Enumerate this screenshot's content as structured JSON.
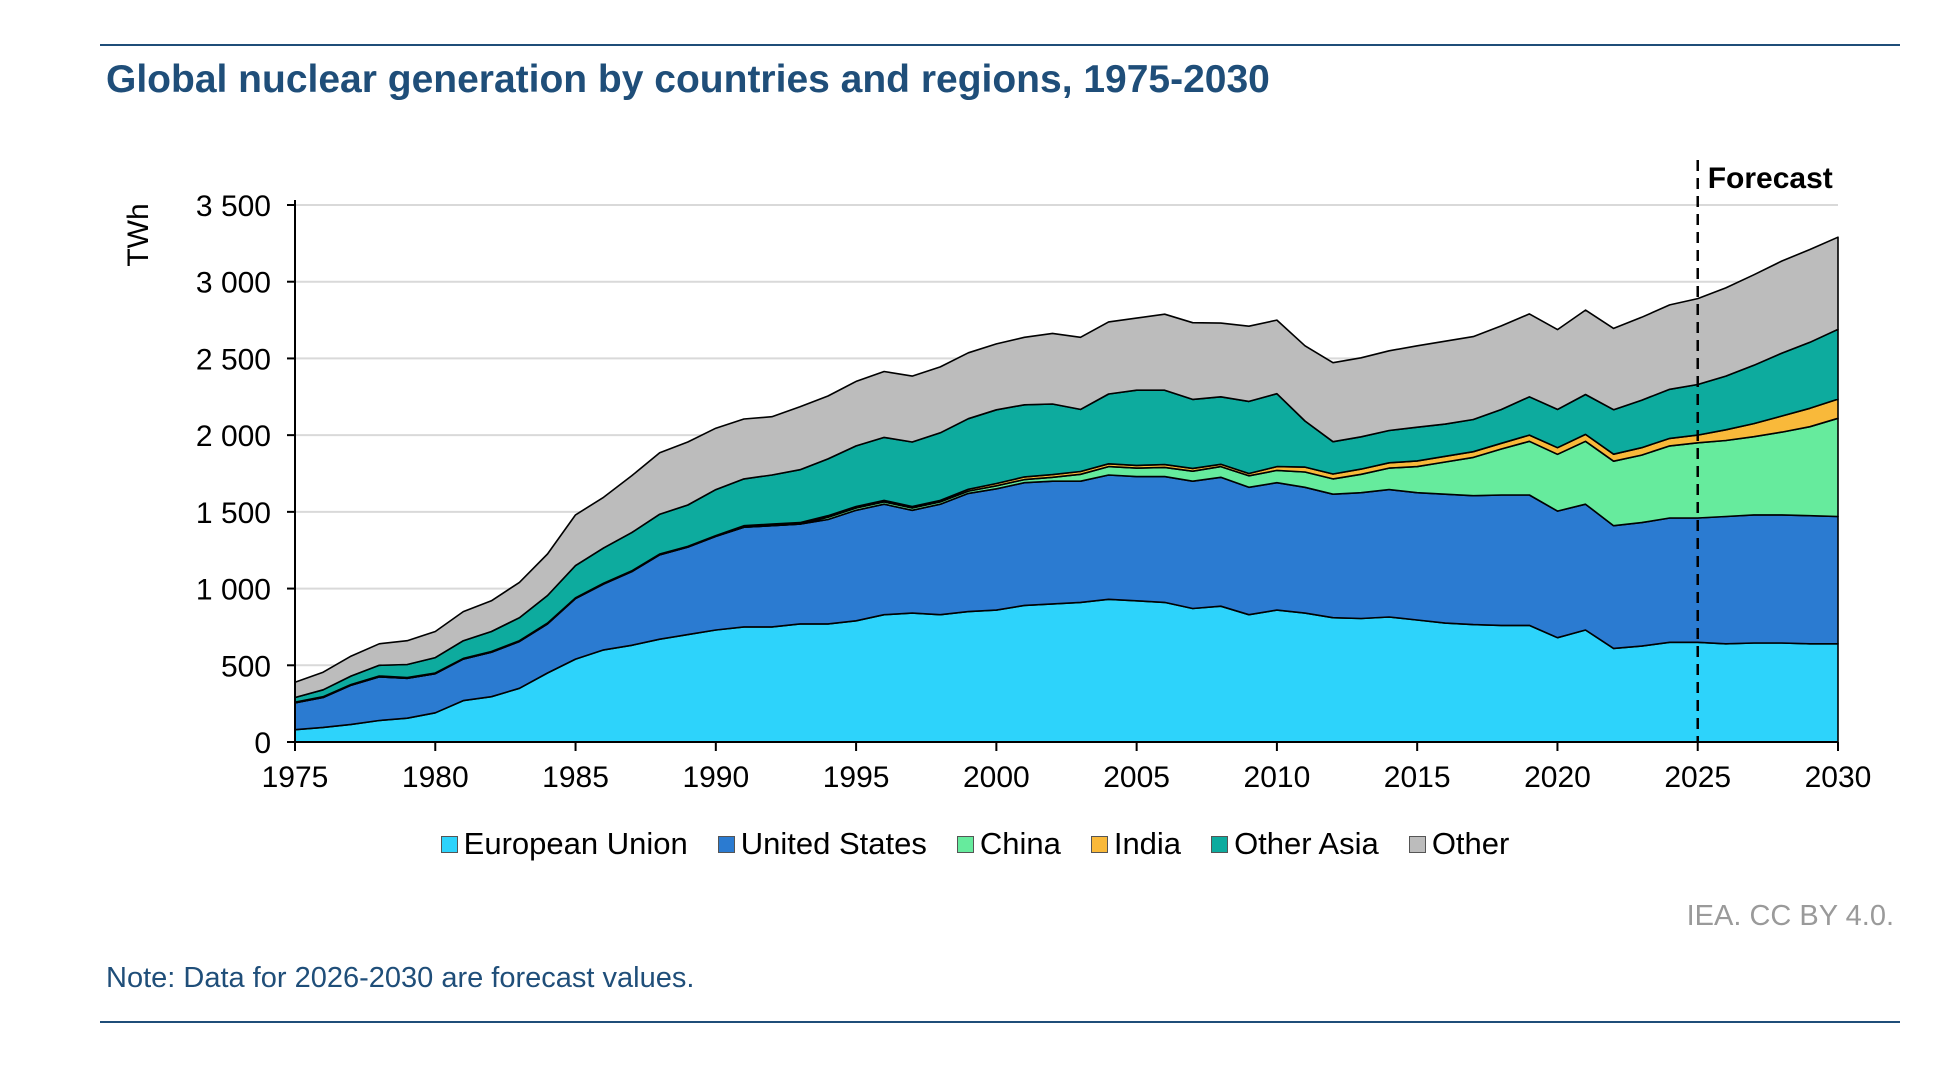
{
  "title": "Global nuclear generation by countries and regions, 1975-2030",
  "credit": "IEA. CC BY 4.0.",
  "note": "Note: Data for 2026-2030 are forecast values.",
  "colors": {
    "European Union": "#2dd3fb",
    "United States": "#2b7bd1",
    "China": "#66eb9d",
    "India": "#f9b93a",
    "Other Asia": "#0dab9e",
    "Other": "#bcbcbc"
  },
  "chart_data": {
    "type": "area",
    "stacked": true,
    "title": "Global nuclear generation by countries and regions, 1975-2030",
    "ylabel": "TWh",
    "xlabel": "",
    "xlim": [
      1975,
      2030
    ],
    "ylim": [
      0,
      3500
    ],
    "x_ticks": [
      1975,
      1980,
      1985,
      1990,
      1995,
      2000,
      2005,
      2010,
      2015,
      2020,
      2025,
      2030
    ],
    "y_ticks": [
      0,
      500,
      1000,
      1500,
      2000,
      2500,
      3000,
      3500
    ],
    "x_tick_labels": [
      "1975",
      "1980",
      "1985",
      "1990",
      "1995",
      "2000",
      "2005",
      "2010",
      "2015",
      "2020",
      "2025",
      "2030"
    ],
    "y_tick_labels": [
      "0",
      "500",
      "1 000",
      "1 500",
      "2 000",
      "2 500",
      "3 000",
      "3 500"
    ],
    "grid": "horizontal",
    "legend_position": "bottom",
    "forecast_marker": {
      "x": 2025,
      "label": "Forecast"
    },
    "x": [
      1975,
      1976,
      1977,
      1978,
      1979,
      1980,
      1981,
      1982,
      1983,
      1984,
      1985,
      1986,
      1987,
      1988,
      1989,
      1990,
      1991,
      1992,
      1993,
      1994,
      1995,
      1996,
      1997,
      1998,
      1999,
      2000,
      2001,
      2002,
      2003,
      2004,
      2005,
      2006,
      2007,
      2008,
      2009,
      2010,
      2011,
      2012,
      2013,
      2014,
      2015,
      2016,
      2017,
      2018,
      2019,
      2020,
      2021,
      2022,
      2023,
      2024,
      2025,
      2026,
      2027,
      2028,
      2029,
      2030
    ],
    "series": [
      {
        "name": "European Union",
        "values": [
          80,
          95,
          115,
          140,
          155,
          190,
          270,
          295,
          350,
          450,
          540,
          600,
          630,
          670,
          700,
          730,
          750,
          750,
          770,
          770,
          790,
          830,
          840,
          830,
          850,
          860,
          890,
          900,
          910,
          930,
          920,
          910,
          870,
          885,
          830,
          860,
          840,
          810,
          805,
          815,
          795,
          775,
          765,
          760,
          760,
          680,
          730,
          610,
          625,
          650,
          650,
          640,
          645,
          645,
          640,
          640
        ]
      },
      {
        "name": "United States",
        "values": [
          175,
          195,
          255,
          285,
          260,
          255,
          270,
          290,
          305,
          320,
          395,
          430,
          480,
          550,
          570,
          610,
          650,
          660,
          650,
          680,
          720,
          720,
          670,
          720,
          770,
          790,
          800,
          800,
          790,
          810,
          810,
          820,
          830,
          840,
          830,
          830,
          820,
          805,
          820,
          830,
          830,
          840,
          840,
          850,
          850,
          825,
          820,
          800,
          805,
          810,
          810,
          830,
          835,
          835,
          835,
          830
        ]
      },
      {
        "name": "China",
        "values": [
          0,
          0,
          0,
          0,
          0,
          0,
          0,
          0,
          0,
          0,
          0,
          0,
          0,
          0,
          0,
          0,
          0,
          0,
          0,
          15,
          15,
          15,
          15,
          15,
          15,
          20,
          20,
          25,
          45,
          55,
          55,
          60,
          65,
          70,
          75,
          80,
          100,
          100,
          120,
          140,
          170,
          210,
          250,
          300,
          350,
          370,
          410,
          420,
          440,
          470,
          490,
          495,
          510,
          540,
          580,
          640
        ]
      },
      {
        "name": "India",
        "values": [
          5,
          5,
          5,
          5,
          5,
          5,
          5,
          5,
          5,
          5,
          5,
          5,
          5,
          5,
          5,
          5,
          10,
          10,
          10,
          10,
          10,
          10,
          10,
          10,
          12,
          15,
          18,
          18,
          18,
          18,
          18,
          18,
          18,
          15,
          15,
          25,
          32,
          32,
          34,
          35,
          37,
          37,
          37,
          37,
          40,
          43,
          45,
          46,
          48,
          49,
          50,
          70,
          85,
          105,
          120,
          125
        ]
      },
      {
        "name": "Other Asia",
        "values": [
          30,
          45,
          55,
          70,
          85,
          100,
          115,
          130,
          150,
          180,
          210,
          230,
          250,
          260,
          270,
          300,
          305,
          320,
          345,
          370,
          395,
          410,
          420,
          440,
          460,
          480,
          470,
          460,
          405,
          455,
          490,
          485,
          450,
          440,
          470,
          475,
          300,
          210,
          210,
          210,
          220,
          210,
          210,
          220,
          250,
          250,
          260,
          290,
          310,
          320,
          330,
          350,
          380,
          410,
          430,
          455
        ]
      },
      {
        "name": "Other",
        "values": [
          100,
          115,
          130,
          140,
          155,
          170,
          190,
          200,
          230,
          270,
          330,
          330,
          370,
          400,
          410,
          400,
          390,
          380,
          410,
          410,
          420,
          430,
          430,
          430,
          430,
          430,
          440,
          460,
          470,
          470,
          470,
          495,
          500,
          480,
          490,
          480,
          490,
          515,
          515,
          520,
          530,
          540,
          540,
          545,
          540,
          520,
          550,
          530,
          540,
          550,
          560,
          575,
          590,
          600,
          605,
          600
        ]
      }
    ]
  }
}
